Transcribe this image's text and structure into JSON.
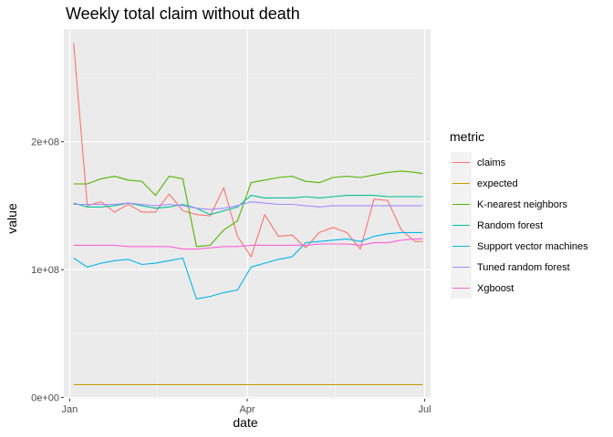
{
  "chart_data": {
    "type": "line",
    "title": "Weekly total claim without death",
    "xlabel": "date",
    "ylabel": "value",
    "xlim": [
      "2019-12-29",
      "2020-07-04"
    ],
    "ylim": [
      -1000000,
      288000000
    ],
    "x_ticks": [
      {
        "date": "2020-01-01",
        "label": "Jan"
      },
      {
        "date": "2020-04-01",
        "label": "Apr"
      },
      {
        "date": "2020-07-01",
        "label": "Jul"
      }
    ],
    "x_minor_dates": [
      "2020-02-15",
      "2020-05-16"
    ],
    "y_ticks": [
      {
        "value": 0,
        "label": "0e+00"
      },
      {
        "value": 100000000,
        "label": "1e+08"
      },
      {
        "value": 200000000,
        "label": "2e+08"
      }
    ],
    "y_minor_values": [
      50000000,
      150000000,
      250000000
    ],
    "grid": true,
    "legend_position": "right",
    "legend_title": "metric",
    "x": [
      "2020-01-03",
      "2020-01-10",
      "2020-01-17",
      "2020-01-24",
      "2020-01-31",
      "2020-02-07",
      "2020-02-14",
      "2020-02-21",
      "2020-02-28",
      "2020-03-06",
      "2020-03-13",
      "2020-03-20",
      "2020-03-27",
      "2020-04-03",
      "2020-04-10",
      "2020-04-17",
      "2020-04-24",
      "2020-05-01",
      "2020-05-08",
      "2020-05-15",
      "2020-05-22",
      "2020-05-29",
      "2020-06-05",
      "2020-06-12",
      "2020-06-19",
      "2020-06-26",
      "2020-06-30"
    ],
    "series": [
      {
        "name": "claims",
        "color": "#F8766D",
        "values": [
          277,
          150,
          153,
          145,
          151,
          145,
          145,
          159,
          146,
          143,
          142,
          164,
          126,
          110,
          143,
          126,
          127,
          117,
          129,
          133,
          129,
          116,
          155,
          154,
          131,
          122,
          122
        ]
      },
      {
        "name": "expected",
        "color": "#C49A00",
        "values": [
          10,
          10,
          10,
          10,
          10,
          10,
          10,
          10,
          10,
          10,
          10,
          10,
          10,
          10,
          10,
          10,
          10,
          10,
          10,
          10,
          10,
          10,
          10,
          10,
          10,
          10,
          10
        ]
      },
      {
        "name": "K-nearest neighbors",
        "color": "#53B400",
        "values": [
          167,
          167,
          171,
          173,
          170,
          169,
          158,
          173,
          171,
          118,
          119,
          131,
          138,
          168,
          170,
          172,
          173,
          169,
          168,
          172,
          173,
          172,
          174,
          176,
          177,
          176,
          175
        ]
      },
      {
        "name": "Random forest",
        "color": "#00C094",
        "values": [
          152,
          149,
          149,
          150,
          152,
          150,
          148,
          149,
          151,
          148,
          143,
          146,
          149,
          158,
          156,
          156,
          156,
          157,
          156,
          157,
          158,
          158,
          158,
          157,
          157,
          157,
          157
        ]
      },
      {
        "name": "Support vector machines",
        "color": "#00B6EB",
        "values": [
          109,
          102,
          105,
          107,
          108,
          104,
          105,
          107,
          109,
          77,
          79,
          82,
          84,
          102,
          105,
          108,
          110,
          121,
          122,
          123,
          124,
          122,
          126,
          128,
          129,
          129,
          129
        ]
      },
      {
        "name": "Tuned random forest",
        "color": "#A58AFF",
        "values": [
          151,
          151,
          151,
          151,
          152,
          151,
          150,
          151,
          150,
          148,
          147,
          148,
          150,
          153,
          152,
          151,
          151,
          150,
          149,
          150,
          150,
          150,
          150,
          150,
          150,
          150,
          150
        ]
      },
      {
        "name": "Xgboost",
        "color": "#FB61D7",
        "values": [
          119,
          119,
          119,
          119,
          118,
          118,
          118,
          118,
          116,
          116,
          117,
          118,
          118,
          119,
          119,
          119,
          119,
          119,
          120,
          120,
          120,
          119,
          121,
          121,
          123,
          124,
          124
        ]
      }
    ],
    "value_scale": 1000000
  }
}
